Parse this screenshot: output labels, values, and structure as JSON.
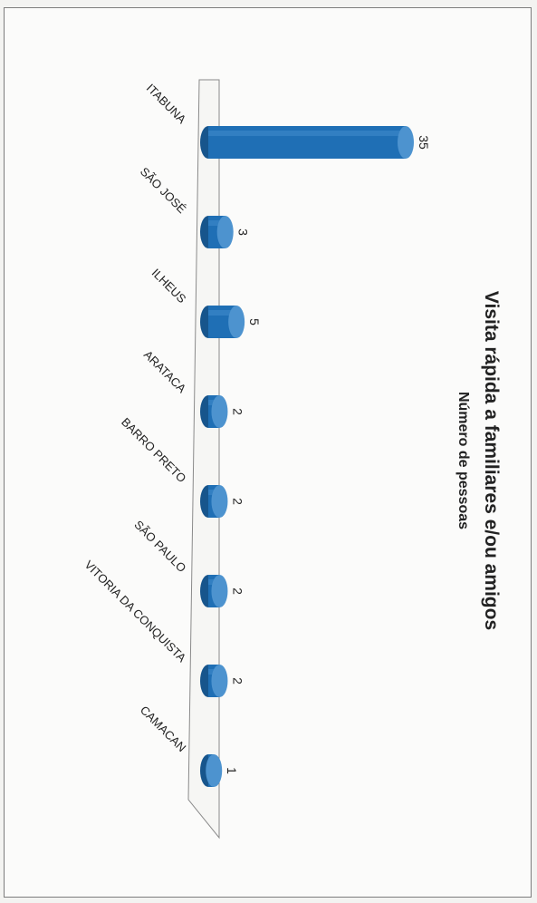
{
  "chart_data": {
    "type": "bar",
    "title": "Visita rápida  a familiares e/ou amigos",
    "subtitle": "Número de pessoas",
    "categories": [
      "ITABUNA",
      "SÃO JOSÉ",
      "ILHEUS",
      "ARATACA",
      "BARRO PRETO",
      "SÃO PAULO",
      "VITORIA DA CONQUISTA",
      "CAMACAN"
    ],
    "values": [
      35,
      3,
      5,
      2,
      2,
      2,
      2,
      1
    ],
    "value_labels": [
      "35",
      "3",
      "5",
      "2",
      "2",
      "2",
      "2",
      "1"
    ],
    "bar_color": "#1f6fb5",
    "bar_top_color": "#4d93cf",
    "bar_shade_color": "#17558c",
    "grid": false,
    "legend": "none"
  }
}
